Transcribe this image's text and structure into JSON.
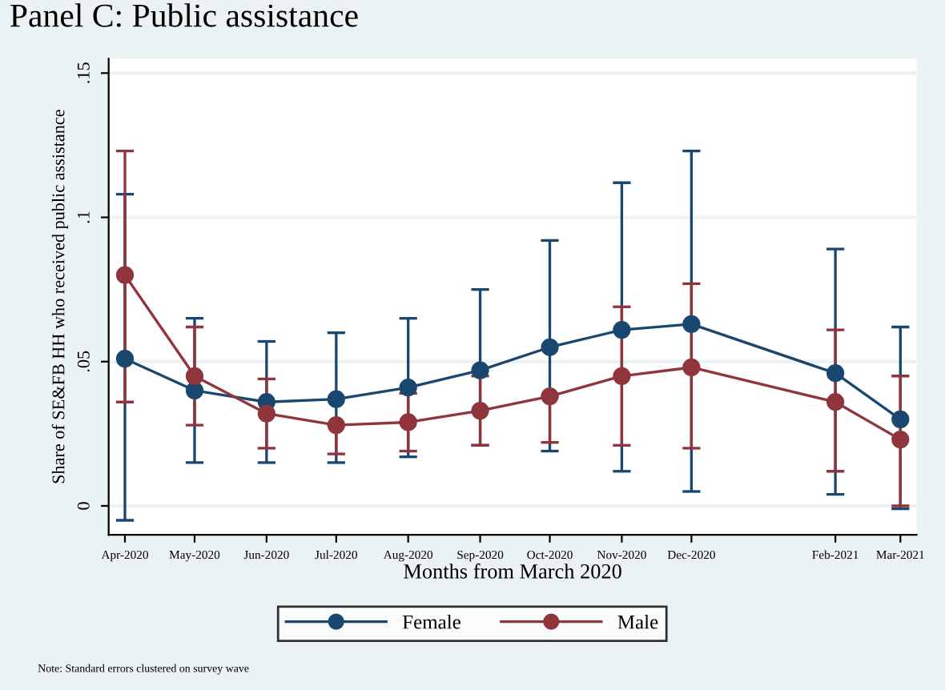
{
  "chart_data": {
    "type": "line",
    "title": "Panel C: Public assistance",
    "xlabel": "Months from March 2020",
    "ylabel": "Share of SE&FB HH who received public assistance",
    "x": [
      "2020-04",
      "2020-05",
      "2020-06",
      "2020-07",
      "2020-08",
      "2020-09",
      "2020-10",
      "2020-11",
      "2020-12",
      "2021-02",
      "2021-03"
    ],
    "xlim": [
      "2020-03-25",
      "2021-03-08"
    ],
    "xticks": [
      {
        "value": "2020-04",
        "label": "Apr-2020"
      },
      {
        "value": "2020-05",
        "label": "May-2020"
      },
      {
        "value": "2020-06",
        "label": "Jun-2020"
      },
      {
        "value": "2020-07",
        "label": "Jul-2020"
      },
      {
        "value": "2020-08",
        "label": "Aug-2020"
      },
      {
        "value": "2020-09",
        "label": "Sep-2020"
      },
      {
        "value": "2020-10",
        "label": "Oct-2020"
      },
      {
        "value": "2020-11",
        "label": "Nov-2020"
      },
      {
        "value": "2020-12",
        "label": "Dec-2020"
      },
      {
        "value": "2021-02",
        "label": "Feb-2021"
      },
      {
        "value": "2021-03",
        "label": "Mar-2021"
      }
    ],
    "ylim": [
      -0.01,
      0.155
    ],
    "yticks": [
      {
        "value": 0,
        "label": "0"
      },
      {
        "value": 0.05,
        "label": ".05"
      },
      {
        "value": 0.1,
        "label": ".1"
      },
      {
        "value": 0.15,
        "label": ".15"
      }
    ],
    "grid": "y",
    "legend": "bottom",
    "marker": "circle",
    "line_style": "solid",
    "series": [
      {
        "name": "Female",
        "color": "#1a476f",
        "values": [
          0.051,
          0.04,
          0.036,
          0.037,
          0.041,
          0.047,
          0.055,
          0.061,
          0.063,
          0.046,
          0.03
        ],
        "errors": [
          [
            -0.005,
            0.108
          ],
          [
            0.015,
            0.065
          ],
          [
            0.015,
            0.057
          ],
          [
            0.015,
            0.06
          ],
          [
            0.017,
            0.065
          ],
          [
            0.021,
            0.075
          ],
          [
            0.019,
            0.092
          ],
          [
            0.012,
            0.112
          ],
          [
            0.005,
            0.123
          ],
          [
            0.004,
            0.089
          ],
          [
            -0.001,
            0.062
          ]
        ]
      },
      {
        "name": "Male",
        "color": "#90353b",
        "values": [
          0.08,
          0.045,
          0.032,
          0.028,
          0.029,
          0.033,
          0.038,
          0.045,
          0.048,
          0.036,
          0.023
        ],
        "errors": [
          [
            0.036,
            0.123
          ],
          [
            0.028,
            0.062
          ],
          [
            0.02,
            0.044
          ],
          [
            0.018,
            0.028
          ],
          [
            0.019,
            0.039
          ],
          [
            0.021,
            0.045
          ],
          [
            0.022,
            0.038
          ],
          [
            0.021,
            0.069
          ],
          [
            0.02,
            0.077
          ],
          [
            0.012,
            0.061
          ],
          [
            0.0,
            0.045
          ]
        ]
      }
    ],
    "annotations": [
      "Note: Standard errors clustered on survey wave"
    ]
  }
}
